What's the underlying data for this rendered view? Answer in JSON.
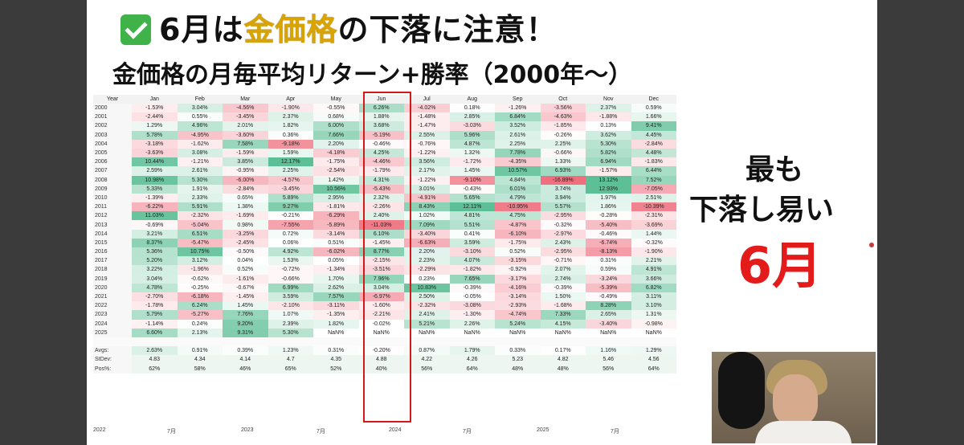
{
  "headline": {
    "pre": "6月は",
    "gold": "金価格",
    "post": "の下落に注意！"
  },
  "subtitle": "金価格の月毎平均リターン+勝率（2000年〜）",
  "side_text": {
    "line1": "最も",
    "line2": "下落し易い",
    "line3": "6月"
  },
  "table": {
    "headers": [
      "Year",
      "Jan",
      "Feb",
      "Mar",
      "Apr",
      "May",
      "Jun",
      "Jul",
      "Aug",
      "Sep",
      "Oct",
      "Nov",
      "Dec"
    ],
    "rows": [
      [
        "2000",
        "-1.53%",
        "3.04%",
        "-4.56%",
        "-1.90%",
        "-0.55%",
        "6.26%",
        "-4.02%",
        "0.18%",
        "-1.26%",
        "-3.56%",
        "2.37%",
        "0.59%"
      ],
      [
        "2001",
        "-2.44%",
        "0.55%",
        "-3.45%",
        "2.37%",
        "0.68%",
        "1.88%",
        "-1.48%",
        "2.85%",
        "6.84%",
        "-4.63%",
        "-1.88%",
        "1.66%"
      ],
      [
        "2002",
        "1.29%",
        "4.96%",
        "2.01%",
        "1.82%",
        "6.00%",
        "3.68%",
        "-1.47%",
        "-3.03%",
        "3.52%",
        "-1.85%",
        "0.13%",
        "9.41%"
      ],
      [
        "2003",
        "5.78%",
        "-4.95%",
        "-3.60%",
        "0.36%",
        "7.66%",
        "-5.19%",
        "2.55%",
        "5.96%",
        "2.61%",
        "-0.26%",
        "3.62%",
        "4.45%"
      ],
      [
        "2004",
        "-3.18%",
        "-1.62%",
        "7.58%",
        "-9.18%",
        "2.20%",
        "-0.46%",
        "-0.76%",
        "4.87%",
        "2.25%",
        "2.25%",
        "5.30%",
        "-2.84%"
      ],
      [
        "2005",
        "-3.63%",
        "3.08%",
        "-1.59%",
        "1.59%",
        "-4.18%",
        "4.25%",
        "-1.22%",
        "1.32%",
        "7.78%",
        "-0.66%",
        "5.82%",
        "4.48%"
      ],
      [
        "2006",
        "10.44%",
        "-1.21%",
        "3.85%",
        "12.17%",
        "-1.75%",
        "-4.46%",
        "3.56%",
        "-1.72%",
        "-4.35%",
        "1.33%",
        "6.94%",
        "-1.83%"
      ],
      [
        "2007",
        "2.59%",
        "2.61%",
        "-0.95%",
        "2.25%",
        "-2.54%",
        "-1.79%",
        "2.17%",
        "1.45%",
        "10.57%",
        "6.93%",
        "-1.57%",
        "6.44%"
      ],
      [
        "2008",
        "10.98%",
        "5.30%",
        "-6.00%",
        "-4.57%",
        "1.42%",
        "4.31%",
        "-1.22%",
        "-9.10%",
        "4.84%",
        "-16.89%",
        "13.12%",
        "7.52%"
      ],
      [
        "2009",
        "5.33%",
        "1.91%",
        "-2.84%",
        "-3.45%",
        "10.56%",
        "-5.43%",
        "3.01%",
        "-0.43%",
        "6.01%",
        "3.74%",
        "12.93%",
        "-7.05%"
      ],
      [
        "2010",
        "-1.39%",
        "2.33%",
        "0.65%",
        "5.89%",
        "2.95%",
        "2.32%",
        "-4.91%",
        "5.65%",
        "4.79%",
        "3.94%",
        "1.97%",
        "2.51%"
      ],
      [
        "2011",
        "-6.22%",
        "5.91%",
        "1.38%",
        "9.27%",
        "-1.81%",
        "-2.26%",
        "8.43%",
        "12.11%",
        "-10.95%",
        "5.57%",
        "1.86%",
        "-10.39%"
      ],
      [
        "2012",
        "11.03%",
        "-2.32%",
        "-1.69%",
        "-0.21%",
        "-6.29%",
        "2.40%",
        "1.02%",
        "4.81%",
        "4.75%",
        "-2.95%",
        "-0.28%",
        "-2.31%"
      ],
      [
        "2013",
        "-0.69%",
        "-5.04%",
        "0.98%",
        "-7.55%",
        "-5.89%",
        "-11.03%",
        "7.09%",
        "5.51%",
        "-4.87%",
        "-0.32%",
        "-5.40%",
        "-3.69%"
      ],
      [
        "2014",
        "3.21%",
        "6.51%",
        "-3.25%",
        "0.72%",
        "-3.14%",
        "6.10%",
        "-3.40%",
        "0.41%",
        "-6.10%",
        "-2.97%",
        "-0.46%",
        "1.44%"
      ],
      [
        "2015",
        "8.37%",
        "-5.47%",
        "-2.45%",
        "0.06%",
        "0.51%",
        "-1.45%",
        "-6.63%",
        "3.59%",
        "-1.75%",
        "2.43%",
        "-6.74%",
        "-0.32%"
      ],
      [
        "2016",
        "5.36%",
        "10.75%",
        "-0.50%",
        "4.92%",
        "-6.02%",
        "8.77%",
        "2.20%",
        "-3.10%",
        "0.52%",
        "-2.95%",
        "-8.13%",
        "-1.90%"
      ],
      [
        "2017",
        "5.20%",
        "3.12%",
        "0.04%",
        "1.53%",
        "0.05%",
        "-2.15%",
        "2.23%",
        "4.07%",
        "-3.15%",
        "-0.71%",
        "0.31%",
        "2.21%"
      ],
      [
        "2018",
        "3.22%",
        "-1.96%",
        "0.52%",
        "-0.72%",
        "-1.34%",
        "-3.51%",
        "-2.29%",
        "-1.82%",
        "-0.92%",
        "2.07%",
        "0.59%",
        "4.91%"
      ],
      [
        "2019",
        "3.04%",
        "-0.62%",
        "-1.61%",
        "-0.66%",
        "1.70%",
        "7.96%",
        "0.23%",
        "7.65%",
        "-3.17%",
        "2.74%",
        "-3.24%",
        "3.66%"
      ],
      [
        "2020",
        "4.78%",
        "-0.25%",
        "-0.67%",
        "6.99%",
        "2.62%",
        "3.04%",
        "10.83%",
        "-0.39%",
        "-4.16%",
        "-0.39%",
        "-5.39%",
        "6.82%"
      ],
      [
        "2021",
        "-2.70%",
        "-6.18%",
        "-1.45%",
        "3.59%",
        "7.57%",
        "-6.97%",
        "2.50%",
        "-0.05%",
        "-3.14%",
        "1.50%",
        "-0.49%",
        "3.11%"
      ],
      [
        "2022",
        "-1.78%",
        "6.24%",
        "1.45%",
        "-2.10%",
        "-3.11%",
        "-1.60%",
        "-2.32%",
        "-3.08%",
        "-2.93%",
        "-1.68%",
        "8.28%",
        "3.10%"
      ],
      [
        "2023",
        "5.79%",
        "-5.27%",
        "7.76%",
        "1.07%",
        "-1.35%",
        "-2.21%",
        "2.41%",
        "-1.30%",
        "-4.74%",
        "7.33%",
        "2.65%",
        "1.31%"
      ],
      [
        "2024",
        "-1.14%",
        "0.24%",
        "9.20%",
        "2.39%",
        "1.82%",
        "-0.02%",
        "5.21%",
        "2.26%",
        "5.24%",
        "4.15%",
        "-3.40%",
        "-0.98%"
      ],
      [
        "2025",
        "6.60%",
        "2.13%",
        "9.31%",
        "5.30%",
        "NaN%",
        "NaN%",
        "NaN%",
        "NaN%",
        "NaN%",
        "NaN%",
        "NaN%",
        "NaN%"
      ]
    ],
    "stats": [
      [
        "Avgs:",
        "2.63%",
        "0.91%",
        "0.39%",
        "1.23%",
        "0.31%",
        "-0.20%",
        "0.87%",
        "1.79%",
        "0.33%",
        "0.17%",
        "1.16%",
        "1.29%"
      ],
      [
        "StDev:",
        "4.83",
        "4.34",
        "4.14",
        "4.7",
        "4.35",
        "4.88",
        "4.22",
        "4.26",
        "5.23",
        "4.82",
        "5.46",
        "4.56"
      ],
      [
        "Pos%:",
        "62%",
        "58%",
        "46%",
        "65%",
        "52%",
        "40%",
        "56%",
        "64%",
        "48%",
        "48%",
        "56%",
        "64%"
      ]
    ]
  },
  "axis_labels": [
    "2022",
    "7月",
    "2023",
    "7月",
    "2024",
    "7月",
    "2025",
    "7月"
  ],
  "colors": {
    "accent_red": "#e31b1b",
    "gold": "#d9a400",
    "positive": "#5cbf95",
    "negative": "#ef6f7e"
  }
}
